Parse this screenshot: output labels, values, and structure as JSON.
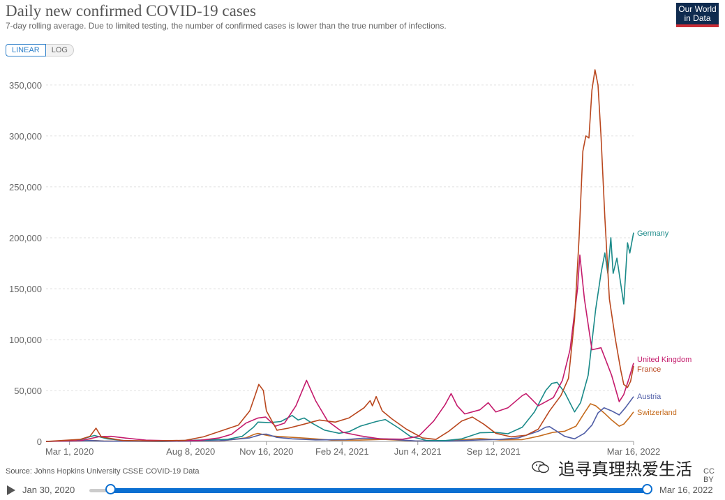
{
  "header": {
    "title": "Daily new confirmed COVID-19 cases",
    "subtitle": "7-day rolling average. Due to limited testing, the number of confirmed cases is lower than the true number of infections.",
    "logo_line1": "Our World",
    "logo_line2": "in Data"
  },
  "scale_toggle": {
    "linear_label": "LINEAR",
    "log_label": "LOG",
    "selected": "LINEAR"
  },
  "footer": {
    "source": "Source: Johns Hopkins University CSSE COVID-19 Data",
    "license": "CC BY",
    "watermark": "追寻真理热爱生活"
  },
  "timeline": {
    "start_label": "Jan 30, 2020",
    "end_label": "Mar 16, 2022"
  },
  "chart_data": {
    "type": "line",
    "title": "Daily new confirmed COVID-19 cases",
    "subtitle": "7-day rolling average. Due to limited testing, the number of confirmed cases is lower than the true number of infections.",
    "x_range": [
      "2020-01-30",
      "2022-03-16"
    ],
    "ylim": [
      0,
      350000
    ],
    "y_ticks": [
      0,
      50000,
      100000,
      150000,
      200000,
      250000,
      300000,
      350000
    ],
    "y_tick_labels": [
      "0",
      "50,000",
      "100,000",
      "150,000",
      "200,000",
      "250,000",
      "300,000",
      "350,000"
    ],
    "x_ticks": [
      {
        "date": "2020-03-01",
        "label": "Mar 1, 2020"
      },
      {
        "date": "2020-08-08",
        "label": "Aug 8, 2020"
      },
      {
        "date": "2020-11-16",
        "label": "Nov 16, 2020"
      },
      {
        "date": "2021-02-24",
        "label": "Feb 24, 2021"
      },
      {
        "date": "2021-06-04",
        "label": "Jun 4, 2021"
      },
      {
        "date": "2021-09-12",
        "label": "Sep 12, 2021"
      },
      {
        "date": "2022-03-16",
        "label": "Mar 16, 2022"
      }
    ],
    "grid": "horizontal",
    "legend": "labels at line ends (right)",
    "series": [
      {
        "name": "Germany",
        "color": "#1a8a89",
        "points": [
          [
            "2020-01-30",
            0
          ],
          [
            "2020-03-10",
            500
          ],
          [
            "2020-03-25",
            4000
          ],
          [
            "2020-04-03",
            5800
          ],
          [
            "2020-04-20",
            2500
          ],
          [
            "2020-05-15",
            700
          ],
          [
            "2020-07-01",
            400
          ],
          [
            "2020-08-20",
            1300
          ],
          [
            "2020-09-25",
            2000
          ],
          [
            "2020-10-15",
            5000
          ],
          [
            "2020-10-30",
            14000
          ],
          [
            "2020-11-05",
            19000
          ],
          [
            "2020-11-20",
            18500
          ],
          [
            "2020-12-05",
            19500
          ],
          [
            "2020-12-20",
            25500
          ],
          [
            "2020-12-28",
            21000
          ],
          [
            "2021-01-05",
            23000
          ],
          [
            "2021-01-15",
            18000
          ],
          [
            "2021-02-01",
            11000
          ],
          [
            "2021-02-20",
            8000
          ],
          [
            "2021-03-05",
            9500
          ],
          [
            "2021-03-20",
            15000
          ],
          [
            "2021-04-10",
            19500
          ],
          [
            "2021-04-22",
            21500
          ],
          [
            "2021-05-10",
            13000
          ],
          [
            "2021-05-25",
            5000
          ],
          [
            "2021-06-15",
            1000
          ],
          [
            "2021-07-10",
            800
          ],
          [
            "2021-08-01",
            2500
          ],
          [
            "2021-08-25",
            8500
          ],
          [
            "2021-09-15",
            8800
          ],
          [
            "2021-10-01",
            7500
          ],
          [
            "2021-10-20",
            14000
          ],
          [
            "2021-11-05",
            29000
          ],
          [
            "2021-11-20",
            50000
          ],
          [
            "2021-11-28",
            57000
          ],
          [
            "2021-12-05",
            58000
          ],
          [
            "2021-12-15",
            48000
          ],
          [
            "2021-12-28",
            29000
          ],
          [
            "2022-01-05",
            38000
          ],
          [
            "2022-01-15",
            65000
          ],
          [
            "2022-01-25",
            130000
          ],
          [
            "2022-02-01",
            165000
          ],
          [
            "2022-02-06",
            185000
          ],
          [
            "2022-02-10",
            165000
          ],
          [
            "2022-02-14",
            200000
          ],
          [
            "2022-02-17",
            165000
          ],
          [
            "2022-02-22",
            180000
          ],
          [
            "2022-02-28",
            150000
          ],
          [
            "2022-03-03",
            135000
          ],
          [
            "2022-03-08",
            195000
          ],
          [
            "2022-03-11",
            185000
          ],
          [
            "2022-03-16",
            205000
          ]
        ]
      },
      {
        "name": "United Kingdom",
        "color": "#c41b6c",
        "points": [
          [
            "2020-01-30",
            0
          ],
          [
            "2020-03-15",
            700
          ],
          [
            "2020-04-10",
            4800
          ],
          [
            "2020-04-25",
            5000
          ],
          [
            "2020-05-15",
            3200
          ],
          [
            "2020-06-10",
            1200
          ],
          [
            "2020-07-15",
            650
          ],
          [
            "2020-08-20",
            1100
          ],
          [
            "2020-09-15",
            3500
          ],
          [
            "2020-10-01",
            7000
          ],
          [
            "2020-10-20",
            18000
          ],
          [
            "2020-11-05",
            23000
          ],
          [
            "2020-11-15",
            24000
          ],
          [
            "2020-11-28",
            15000
          ],
          [
            "2020-12-10",
            18000
          ],
          [
            "2020-12-25",
            35000
          ],
          [
            "2021-01-08",
            60000
          ],
          [
            "2021-01-20",
            40000
          ],
          [
            "2021-02-05",
            20000
          ],
          [
            "2021-02-25",
            9000
          ],
          [
            "2021-03-20",
            5500
          ],
          [
            "2021-04-15",
            2500
          ],
          [
            "2021-05-15",
            2200
          ],
          [
            "2021-06-05",
            5000
          ],
          [
            "2021-06-25",
            20000
          ],
          [
            "2021-07-10",
            36000
          ],
          [
            "2021-07-18",
            47000
          ],
          [
            "2021-07-26",
            35000
          ],
          [
            "2021-08-05",
            27000
          ],
          [
            "2021-08-25",
            31000
          ],
          [
            "2021-09-05",
            38000
          ],
          [
            "2021-09-15",
            29000
          ],
          [
            "2021-10-01",
            33000
          ],
          [
            "2021-10-20",
            45000
          ],
          [
            "2021-10-25",
            47000
          ],
          [
            "2021-11-10",
            35000
          ],
          [
            "2021-11-30",
            43000
          ],
          [
            "2021-12-12",
            60000
          ],
          [
            "2021-12-22",
            90000
          ],
          [
            "2022-01-01",
            150000
          ],
          [
            "2022-01-04",
            183000
          ],
          [
            "2022-01-10",
            140000
          ],
          [
            "2022-01-20",
            90000
          ],
          [
            "2022-02-01",
            92000
          ],
          [
            "2022-02-15",
            65000
          ],
          [
            "2022-02-25",
            39000
          ],
          [
            "2022-03-03",
            46000
          ],
          [
            "2022-03-10",
            62000
          ],
          [
            "2022-03-16",
            77000
          ]
        ]
      },
      {
        "name": "France",
        "color": "#b9471e",
        "points": [
          [
            "2020-01-30",
            0
          ],
          [
            "2020-03-15",
            2000
          ],
          [
            "2020-03-28",
            5000
          ],
          [
            "2020-04-05",
            13000
          ],
          [
            "2020-04-12",
            4500
          ],
          [
            "2020-05-10",
            900
          ],
          [
            "2020-06-20",
            500
          ],
          [
            "2020-08-01",
            1100
          ],
          [
            "2020-08-25",
            4500
          ],
          [
            "2020-09-20",
            11000
          ],
          [
            "2020-10-10",
            16000
          ],
          [
            "2020-10-25",
            30000
          ],
          [
            "2020-11-01",
            45000
          ],
          [
            "2020-11-06",
            56000
          ],
          [
            "2020-11-12",
            50000
          ],
          [
            "2020-11-16",
            30000
          ],
          [
            "2020-11-30",
            11000
          ],
          [
            "2020-12-15",
            13000
          ],
          [
            "2021-01-05",
            17000
          ],
          [
            "2021-01-25",
            21000
          ],
          [
            "2021-02-15",
            19000
          ],
          [
            "2021-03-05",
            23000
          ],
          [
            "2021-03-25",
            33000
          ],
          [
            "2021-04-02",
            40000
          ],
          [
            "2021-04-05",
            35000
          ],
          [
            "2021-04-10",
            44000
          ],
          [
            "2021-04-18",
            30000
          ],
          [
            "2021-05-01",
            22000
          ],
          [
            "2021-05-20",
            12000
          ],
          [
            "2021-06-10",
            3500
          ],
          [
            "2021-06-28",
            2000
          ],
          [
            "2021-07-15",
            10000
          ],
          [
            "2021-08-01",
            20000
          ],
          [
            "2021-08-15",
            24000
          ],
          [
            "2021-08-30",
            17000
          ],
          [
            "2021-09-15",
            8000
          ],
          [
            "2021-10-05",
            4500
          ],
          [
            "2021-10-25",
            6000
          ],
          [
            "2021-11-10",
            12000
          ],
          [
            "2021-11-25",
            30000
          ],
          [
            "2021-12-10",
            45000
          ],
          [
            "2021-12-20",
            62000
          ],
          [
            "2021-12-28",
            120000
          ],
          [
            "2022-01-03",
            200000
          ],
          [
            "2022-01-08",
            285000
          ],
          [
            "2022-01-12",
            300000
          ],
          [
            "2022-01-16",
            298000
          ],
          [
            "2022-01-20",
            345000
          ],
          [
            "2022-01-24",
            365000
          ],
          [
            "2022-01-28",
            350000
          ],
          [
            "2022-02-01",
            300000
          ],
          [
            "2022-02-06",
            220000
          ],
          [
            "2022-02-12",
            140000
          ],
          [
            "2022-02-20",
            100000
          ],
          [
            "2022-02-27",
            70000
          ],
          [
            "2022-03-03",
            56000
          ],
          [
            "2022-03-08",
            53000
          ],
          [
            "2022-03-12",
            59000
          ],
          [
            "2022-03-16",
            74000
          ]
        ]
      },
      {
        "name": "Austria",
        "color": "#4f5da6",
        "points": [
          [
            "2020-01-30",
            0
          ],
          [
            "2020-03-20",
            700
          ],
          [
            "2020-03-28",
            900
          ],
          [
            "2020-04-15",
            300
          ],
          [
            "2020-07-01",
            100
          ],
          [
            "2020-09-15",
            600
          ],
          [
            "2020-10-25",
            3500
          ],
          [
            "2020-11-10",
            7000
          ],
          [
            "2020-11-16",
            7200
          ],
          [
            "2020-11-30",
            4000
          ],
          [
            "2020-12-20",
            2500
          ],
          [
            "2021-01-20",
            1500
          ],
          [
            "2021-03-01",
            1800
          ],
          [
            "2021-03-25",
            3200
          ],
          [
            "2021-04-20",
            2500
          ],
          [
            "2021-06-01",
            500
          ],
          [
            "2021-07-15",
            300
          ],
          [
            "2021-08-25",
            1500
          ],
          [
            "2021-09-20",
            1900
          ],
          [
            "2021-10-15",
            3500
          ],
          [
            "2021-11-10",
            10000
          ],
          [
            "2021-11-20",
            14000
          ],
          [
            "2021-11-25",
            14500
          ],
          [
            "2021-12-15",
            5000
          ],
          [
            "2021-12-28",
            2500
          ],
          [
            "2022-01-10",
            8000
          ],
          [
            "2022-01-20",
            16000
          ],
          [
            "2022-01-28",
            28000
          ],
          [
            "2022-02-05",
            33000
          ],
          [
            "2022-02-15",
            30000
          ],
          [
            "2022-02-25",
            26000
          ],
          [
            "2022-03-05",
            33000
          ],
          [
            "2022-03-16",
            44000
          ]
        ]
      },
      {
        "name": "Switzerland",
        "color": "#c56b1d",
        "points": [
          [
            "2020-01-30",
            0
          ],
          [
            "2020-03-20",
            1000
          ],
          [
            "2020-03-28",
            1100
          ],
          [
            "2020-04-15",
            400
          ],
          [
            "2020-07-01",
            100
          ],
          [
            "2020-09-15",
            400
          ],
          [
            "2020-10-20",
            3500
          ],
          [
            "2020-10-31",
            7000
          ],
          [
            "2020-11-05",
            7900
          ],
          [
            "2020-11-20",
            5500
          ],
          [
            "2020-12-10",
            4500
          ],
          [
            "2021-01-10",
            3000
          ],
          [
            "2021-02-10",
            1200
          ],
          [
            "2021-03-20",
            1300
          ],
          [
            "2021-04-20",
            2000
          ],
          [
            "2021-06-01",
            400
          ],
          [
            "2021-07-15",
            600
          ],
          [
            "2021-08-25",
            2800
          ],
          [
            "2021-09-20",
            1500
          ],
          [
            "2021-10-20",
            1800
          ],
          [
            "2021-11-10",
            5000
          ],
          [
            "2021-11-30",
            9000
          ],
          [
            "2021-12-15",
            10000
          ],
          [
            "2021-12-30",
            15000
          ],
          [
            "2022-01-10",
            28000
          ],
          [
            "2022-01-18",
            37000
          ],
          [
            "2022-01-25",
            35000
          ],
          [
            "2022-02-05",
            28000
          ],
          [
            "2022-02-15",
            21000
          ],
          [
            "2022-02-25",
            15000
          ],
          [
            "2022-03-03",
            17000
          ],
          [
            "2022-03-10",
            23000
          ],
          [
            "2022-03-16",
            29000
          ]
        ]
      }
    ],
    "end_labels": [
      {
        "series": "Germany",
        "text": "Germany"
      },
      {
        "series": "United Kingdom",
        "text": "United Kingdom"
      },
      {
        "series": "France",
        "text": "France"
      },
      {
        "series": "Austria",
        "text": "Austria"
      },
      {
        "series": "Switzerland",
        "text": "Switzerland"
      }
    ]
  }
}
